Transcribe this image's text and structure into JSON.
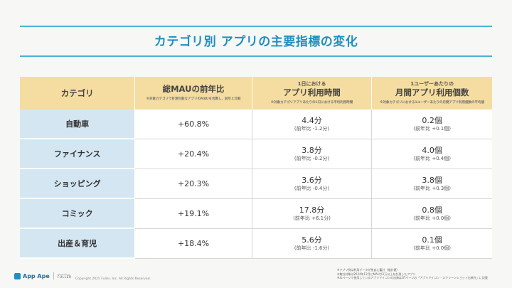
{
  "title": "カテゴリ別 アプリの主要指標の変化",
  "table": {
    "headers": [
      {
        "pre": "",
        "main": "カテゴリ",
        "note": ""
      },
      {
        "pre": "",
        "main": "総MAUの前年比",
        "note": "※対象カテゴリで計測可能なアプリのMAUを合算し、前年と比較"
      },
      {
        "pre": "1日における",
        "main": "アプリ利用時間",
        "note": "※対象カテゴリアプリあたりの1日における平均利用時間"
      },
      {
        "pre": "1ユーザーあたりの",
        "main": "月間アプリ利用個数",
        "note": "※対象カテゴリにおける1ユーザーあたりの月間アプリ利用個数の平均値"
      }
    ],
    "rows": [
      {
        "category": "自動車",
        "mau": "+60.8%",
        "time": "4.4分",
        "time_sub": "(前年比 -1.2分)",
        "count": "0.2個",
        "count_sub": "(前年比 +0.1個)"
      },
      {
        "category": "ファイナンス",
        "mau": "+20.4%",
        "time": "3.8分",
        "time_sub": "(前年比 -0.2分)",
        "count": "4.0個",
        "count_sub": "(前年比 +0.4個)"
      },
      {
        "category": "ショッピング",
        "mau": "+20.3%",
        "time": "3.6分",
        "time_sub": "(前年比 -0.4分)",
        "count": "3.8個",
        "count_sub": "(前年比 +0.3個)"
      },
      {
        "category": "コミック",
        "mau": "+19.1%",
        "time": "17.8分",
        "time_sub": "(前年比 +6.1分)",
        "count": "0.8個",
        "count_sub": "(前年比 +0.0個)"
      },
      {
        "category": "出産＆育児",
        "mau": "+18.4%",
        "time": "5.6分",
        "time_sub": "(前年比 -1.6分)",
        "count": "0.1個",
        "count_sub": "(前年比 +0.0個)"
      }
    ]
  },
  "footer": {
    "notes": [
      "※アプリ例は利用データが独自に蓄計（推計値）",
      "※集計対象は2024年12月にMAUが1万以上を計測したアプリ",
      "※本ページで使用しているアプリアイコンの出典はGTページの「アプリアイコン・スクリーンショット出典元」に記載"
    ],
    "logo_text": "App Ape",
    "fuller_small": "Powered by",
    "fuller_name": "FULLER",
    "copyright": "Copyright 2025 Fuller, Inc. All Rights Reserved."
  },
  "colors": {
    "accent": "#1e8fbf",
    "header_bg": "#f5dca0",
    "category_bg": "#d4e6f2"
  }
}
